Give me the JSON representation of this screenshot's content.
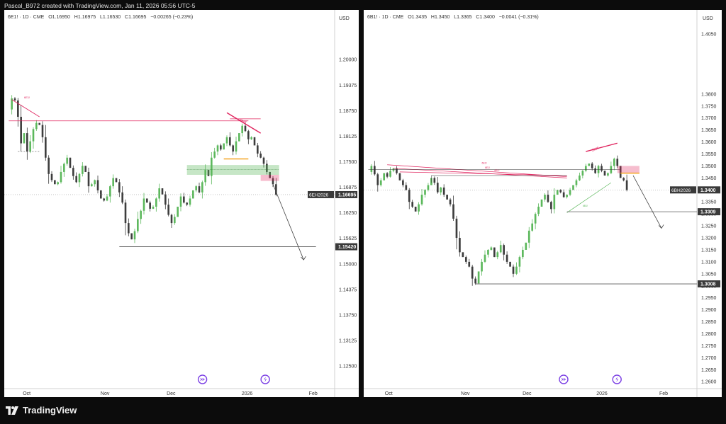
{
  "header": {
    "text": "Pascal_B972 created with TradingView.com, Jan 11, 2026 05:56 UTC-5"
  },
  "footer": {
    "brand": "TradingView"
  },
  "chart_data": [
    {
      "type": "candlestick",
      "symbol": "6E1! · 1D · CME",
      "ohlc": {
        "o": "O1.16950",
        "h": "H1.16975",
        "l": "L1.16530",
        "c": "C1.16695",
        "chg": "−0.00265 (−0.23%)"
      },
      "currency": "USD",
      "ylim": [
        1.12,
        1.208
      ],
      "yticks": [
        "1.20000",
        "1.19375",
        "1.18750",
        "1.18125",
        "1.17500",
        "1.16875",
        "1.16250",
        "1.15625",
        "1.15000",
        "1.14375",
        "1.13750",
        "1.13125",
        "1.12500"
      ],
      "xticks": [
        {
          "label": "Oct",
          "pos": 0.068
        },
        {
          "label": "Nov",
          "pos": 0.305
        },
        {
          "label": "Dec",
          "pos": 0.505
        },
        {
          "label": "2026",
          "pos": 0.735
        },
        {
          "label": "Feb",
          "pos": 0.935
        }
      ],
      "price_tags": [
        {
          "label": "6EH2026",
          "value": "1.16695",
          "price": 1.16695,
          "color": "#3a3a3a"
        },
        {
          "label": "",
          "value": "1.15420",
          "price": 1.1542,
          "color": "#3a3a3a"
        }
      ],
      "annotations": [
        {
          "text": "6E1!",
          "kind": "small-label",
          "color": "#e0245e"
        },
        {
          "text": "SMT",
          "kind": "small-label",
          "color": "#e0245e"
        }
      ],
      "colors": {
        "up": "#5cb85c",
        "down": "#3d3d3d",
        "resistance": "#e0245e",
        "support": "#5cb85c",
        "orange": "#f5a623"
      },
      "price_path": [
        1.1878,
        1.1905,
        1.19,
        1.186,
        1.1795,
        1.182,
        1.1775,
        1.18,
        1.183,
        1.1845,
        1.184,
        1.181,
        1.176,
        1.172,
        1.1705,
        1.1695,
        1.17,
        1.1725,
        1.1745,
        1.176,
        1.1735,
        1.1715,
        1.17,
        1.172,
        1.174,
        1.1725,
        1.169,
        1.1695,
        1.1705,
        1.168,
        1.166,
        1.1655,
        1.1665,
        1.169,
        1.171,
        1.17,
        1.1675,
        1.165,
        1.16,
        1.1575,
        1.156,
        1.158,
        1.161,
        1.163,
        1.166,
        1.165,
        1.1635,
        1.164,
        1.166,
        1.1685,
        1.167,
        1.1645,
        1.162,
        1.16,
        1.1615,
        1.164,
        1.1665,
        1.165,
        1.1645,
        1.166,
        1.168,
        1.169,
        1.1675,
        1.17,
        1.173,
        1.1715,
        1.176,
        1.1775,
        1.179,
        1.178,
        1.1795,
        1.181,
        1.179,
        1.1775,
        1.18,
        1.182,
        1.1838,
        1.1825,
        1.1805,
        1.181,
        1.179,
        1.177,
        1.176,
        1.1745,
        1.1725,
        1.171,
        1.1695,
        1.16695
      ]
    },
    {
      "type": "candlestick",
      "symbol": "6B1! · 1D · CME",
      "ohlc": {
        "o": "O1.3435",
        "h": "H1.3450",
        "l": "L1.3365",
        "c": "C1.3400",
        "chg": "−0.0041 (−0.31%)"
      },
      "currency": "USD",
      "ylim": [
        1.258,
        1.408
      ],
      "yticks": [
        "1.4050",
        "1.3800",
        "1.3750",
        "1.3700",
        "1.3650",
        "1.3600",
        "1.3550",
        "1.3500",
        "1.3450",
        "1.3400",
        "1.3350",
        "1.3300",
        "1.3250",
        "1.3200",
        "1.3150",
        "1.3100",
        "1.3050",
        "1.3000",
        "1.2950",
        "1.2900",
        "1.2850",
        "1.2800",
        "1.2750",
        "1.2700",
        "1.2650",
        "1.2600"
      ],
      "xticks": [
        {
          "label": "Oct",
          "pos": 0.075
        },
        {
          "label": "Nov",
          "pos": 0.305
        },
        {
          "label": "Dec",
          "pos": 0.49
        },
        {
          "label": "2026",
          "pos": 0.715
        },
        {
          "label": "Feb",
          "pos": 0.9
        }
      ],
      "price_tags": [
        {
          "label": "6BH2026",
          "value": "1.3400",
          "price": 1.34,
          "color": "#3a3a3a"
        },
        {
          "label": "",
          "value": "1.3309",
          "price": 1.3309,
          "color": "#3a3a3a"
        },
        {
          "label": "",
          "value": "1.3008",
          "price": 1.3008,
          "color": "#3a3a3a"
        }
      ],
      "annotations": [
        {
          "text": "6E1!",
          "kind": "small-label",
          "color": "#e0245e"
        },
        {
          "text": "6E1!",
          "kind": "small-label",
          "color": "#e0245e"
        },
        {
          "text": "6B1!",
          "kind": "small-label",
          "color": "#e0245e"
        },
        {
          "text": "SMT",
          "kind": "small-label",
          "color": "#e0245e"
        },
        {
          "text": "6B1!",
          "kind": "small-label",
          "color": "#5cb85c"
        }
      ],
      "colors": {
        "up": "#5cb85c",
        "down": "#3d3d3d",
        "resistance": "#e0245e",
        "support": "#5cb85c",
        "orange": "#f5a623"
      },
      "price_path": [
        1.3475,
        1.35,
        1.3465,
        1.342,
        1.344,
        1.347,
        1.3455,
        1.348,
        1.349,
        1.347,
        1.344,
        1.342,
        1.34,
        1.335,
        1.333,
        1.331,
        1.334,
        1.338,
        1.34,
        1.342,
        1.345,
        1.343,
        1.339,
        1.341,
        1.338,
        1.336,
        1.334,
        1.328,
        1.32,
        1.314,
        1.312,
        1.31,
        1.308,
        1.303,
        1.301,
        1.306,
        1.31,
        1.313,
        1.315,
        1.316,
        1.312,
        1.314,
        1.317,
        1.313,
        1.31,
        1.308,
        1.305,
        1.308,
        1.312,
        1.315,
        1.318,
        1.323,
        1.326,
        1.33,
        1.333,
        1.336,
        1.338,
        1.335,
        1.332,
        1.338,
        1.34,
        1.339,
        1.337,
        1.338,
        1.34,
        1.342,
        1.344,
        1.346,
        1.348,
        1.35,
        1.351,
        1.349,
        1.347,
        1.35,
        1.348,
        1.346,
        1.347,
        1.35,
        1.353,
        1.35,
        1.345,
        1.344,
        1.34
      ]
    }
  ]
}
